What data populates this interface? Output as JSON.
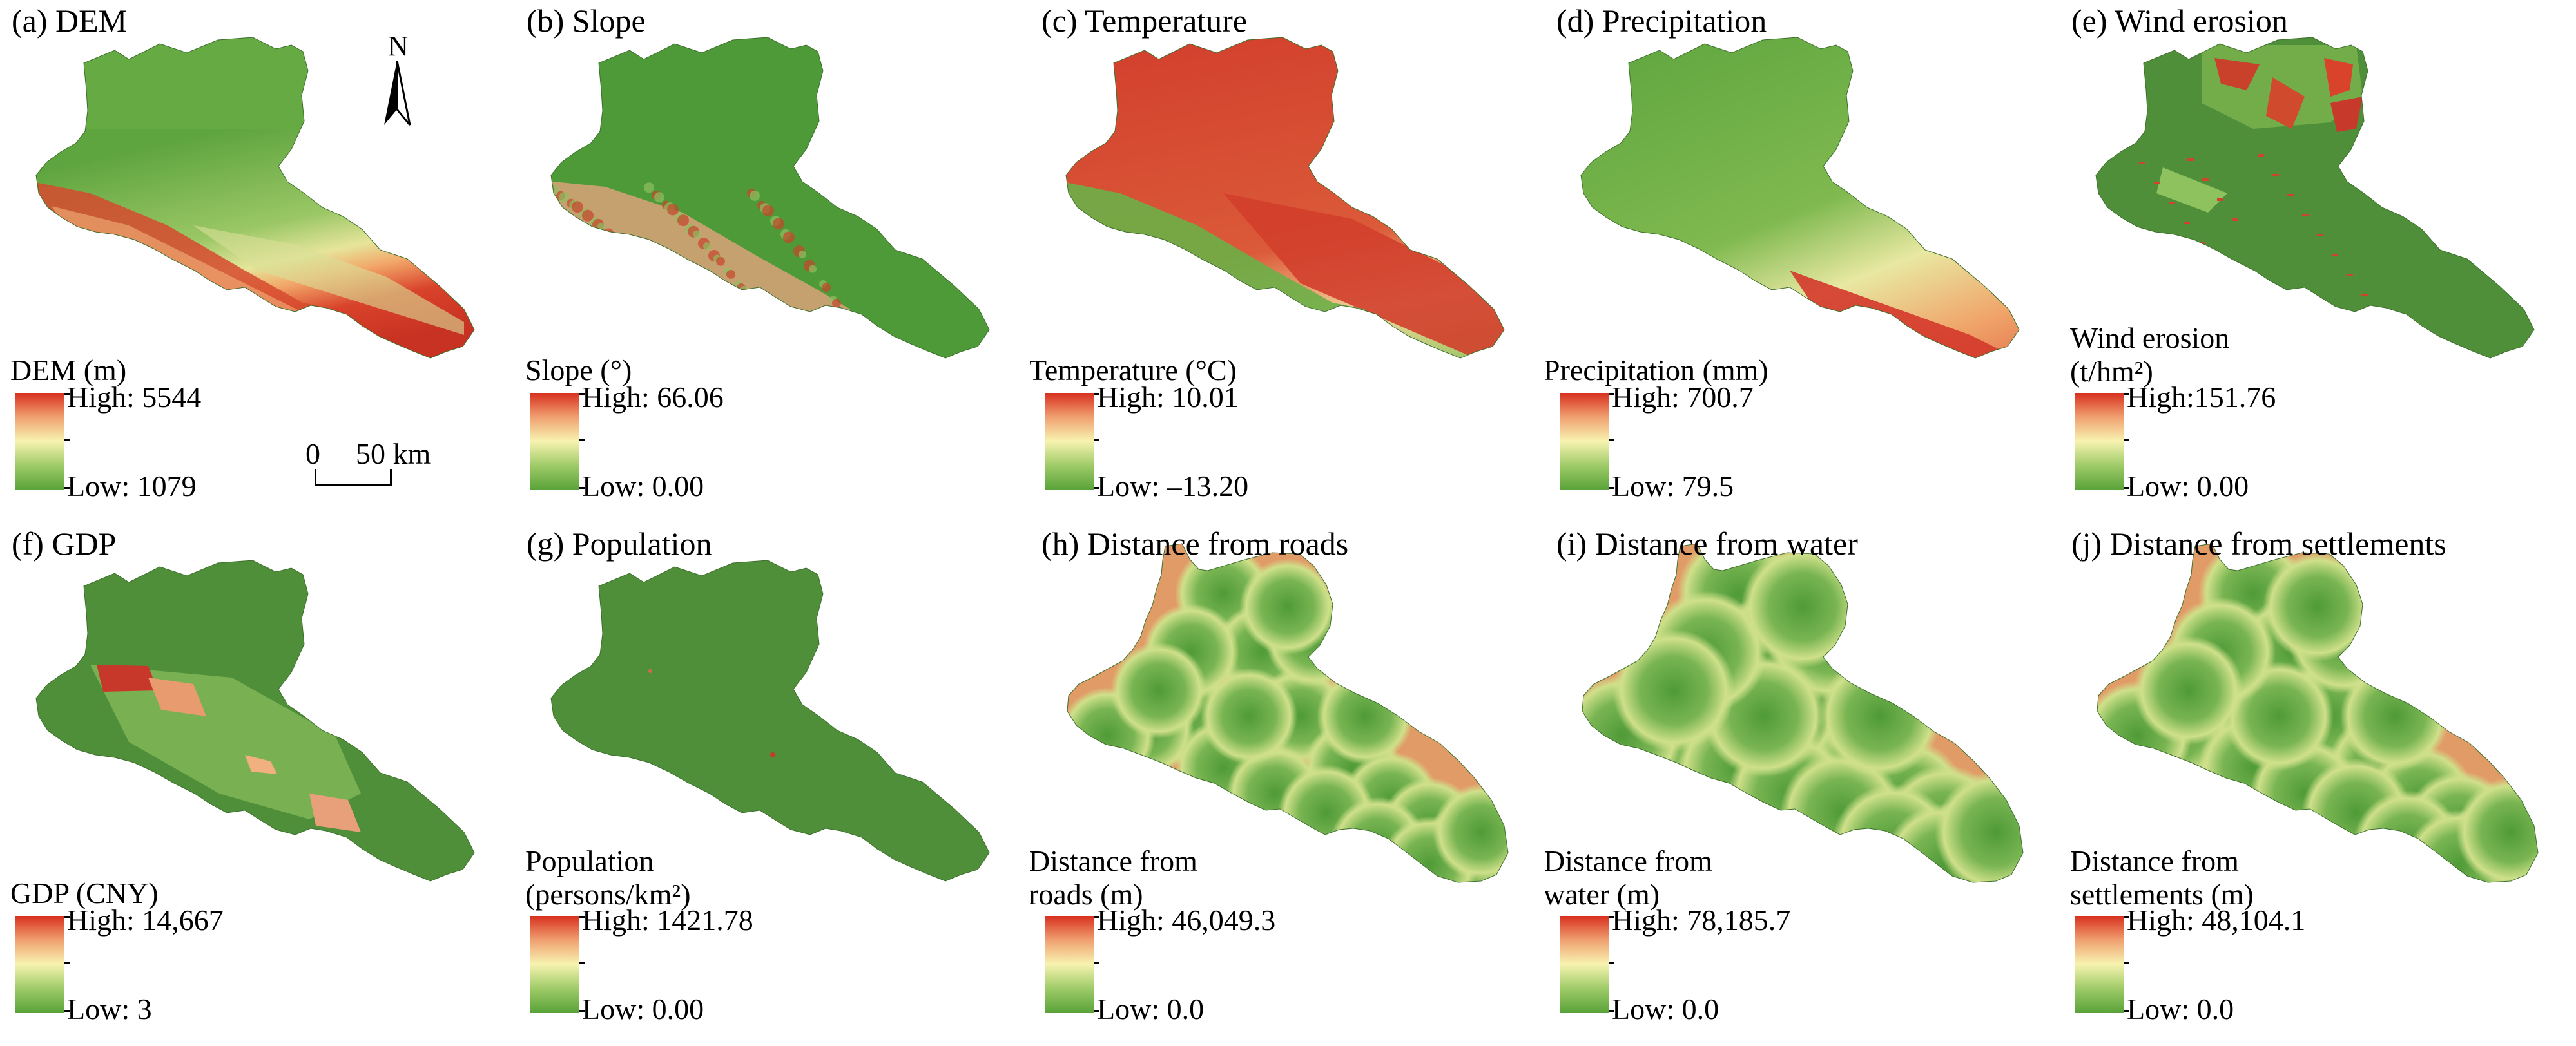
{
  "panels": [
    {
      "id": "a",
      "title": "(a) DEM",
      "legend_lines": [
        "DEM (m)"
      ],
      "high": "High: 5544",
      "low": "Low: 1079",
      "style": "dem"
    },
    {
      "id": "b",
      "title": "(b) Slope",
      "legend_lines": [
        "Slope (°)"
      ],
      "high": "High: 66.06",
      "low": "Low: 0.00",
      "style": "slope"
    },
    {
      "id": "c",
      "title": "(c) Temperature",
      "legend_lines": [
        "Temperature (°C)"
      ],
      "high": "High: 10.01",
      "low": "Low: –13.20",
      "style": "temp"
    },
    {
      "id": "d",
      "title": "(d) Precipitation",
      "legend_lines": [
        "Precipitation (mm)"
      ],
      "high": "High: 700.7",
      "low": "Low: 79.5",
      "style": "precip"
    },
    {
      "id": "e",
      "title": "(e) Wind erosion",
      "legend_lines": [
        "Wind erosion",
        "(t/hm²)"
      ],
      "high": "High:151.76",
      "low": "Low: 0.00",
      "style": "wind"
    },
    {
      "id": "f",
      "title": "(f) GDP",
      "legend_lines": [
        "GDP (CNY)"
      ],
      "high": "High: 14,667",
      "low": "Low: 3",
      "style": "gdp"
    },
    {
      "id": "g",
      "title": "(g) Population",
      "legend_lines": [
        "Population",
        "(persons/km²)"
      ],
      "high": "High: 1421.78",
      "low": "Low: 0.00",
      "style": "pop"
    },
    {
      "id": "h",
      "title": "(h) Distance from roads",
      "legend_lines": [
        "Distance from",
        "roads (m)"
      ],
      "high": "High: 46,049.3",
      "low": "Low: 0.0",
      "style": "dist"
    },
    {
      "id": "i",
      "title": "(i) Distance from water",
      "legend_lines": [
        "Distance from",
        "water (m)"
      ],
      "high": "High: 78,185.7",
      "low": "Low: 0.0",
      "style": "distw"
    },
    {
      "id": "j",
      "title": "(j) Distance from settlements",
      "legend_lines": [
        "Distance from",
        "settlements (m)"
      ],
      "high": "High: 48,104.1",
      "low": "Low: 0.0",
      "style": "dists"
    }
  ],
  "north_label": "N",
  "scale": {
    "zero": "0",
    "fifty": "50 km"
  },
  "colors": {
    "high": "#d7301f",
    "mid": "#f7f3b0",
    "low": "#5aa33a",
    "base_green": "#4f8f3a"
  }
}
